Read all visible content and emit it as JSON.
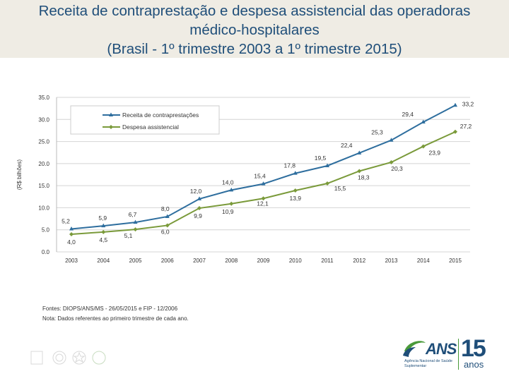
{
  "title": {
    "line1": "Receita de contraprestação e despesa assistencial das operadoras",
    "line2": "médico-hospitalares",
    "line3": "(Brasil - 1º trimestre 2003 a 1º trimestre 2015)"
  },
  "chart_data": {
    "type": "line",
    "ylabel": "(R$ bilhões)",
    "xlabel": "",
    "ylim": [
      0,
      35
    ],
    "yticks": [
      "0.0",
      "5.0",
      "10.0",
      "15.0",
      "20.0",
      "25.0",
      "30.0",
      "35.0"
    ],
    "ytick_values": [
      0,
      5,
      10,
      15,
      20,
      25,
      30,
      35
    ],
    "categories": [
      "2003",
      "2004",
      "2005",
      "2006",
      "2007",
      "2008",
      "2009",
      "2010",
      "2011",
      "2012",
      "2013",
      "2014",
      "2015"
    ],
    "grid": true,
    "legend": "top-left",
    "series": [
      {
        "name": "Receita de contraprestações",
        "color": "#2e6e9e",
        "marker": "triangle",
        "values": [
          5.2,
          5.9,
          6.7,
          8.0,
          12.0,
          14.0,
          15.4,
          17.8,
          19.5,
          22.4,
          25.3,
          29.4,
          33.2
        ],
        "labels": [
          "5,2",
          "5,9",
          "6,7",
          "8,0",
          "12,0",
          "14,0",
          "15,4",
          "17,8",
          "19,5",
          "22,4",
          "25,3",
          "29,4",
          "33,2"
        ]
      },
      {
        "name": "Despesa assistencial",
        "color": "#7a9a3a",
        "marker": "diamond",
        "values": [
          4.0,
          4.5,
          5.1,
          6.0,
          9.9,
          10.9,
          12.1,
          13.9,
          15.5,
          18.3,
          20.3,
          23.9,
          27.2
        ],
        "labels": [
          "4,0",
          "4,5",
          "5,1",
          "6,0",
          "9,9",
          "10,9",
          "12,1",
          "13,9",
          "15,5",
          "18,3",
          "20,3",
          "23,9",
          "27,2"
        ]
      }
    ]
  },
  "notes": {
    "source": "Fontes: DIOPS/ANS/MS - 26/05/2015 e FIP - 12/2006",
    "note": "Nota: Dados referentes ao primeiro trimestre de cada ano."
  },
  "logo": {
    "name": "ANS",
    "subtitle": "Agência Nacional de Saúde Suplementar",
    "anniversary_number": "15",
    "anniversary_word": "anos"
  }
}
